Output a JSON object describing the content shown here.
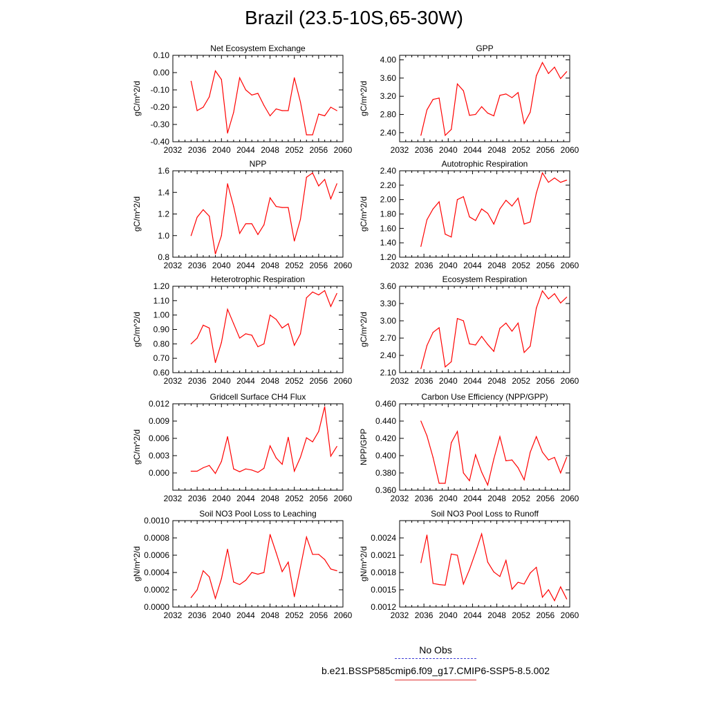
{
  "figure": {
    "title": "Brazil (23.5-10S,65-30W)"
  },
  "legend": {
    "items": [
      {
        "label": "No Obs",
        "color": "#3b3bd6",
        "style": "dashed"
      },
      {
        "label": "b.e21.BSSP585cmip6.f09_g17.CMIP6-SSP5-8.5.002",
        "color": "#e03030",
        "style": "solid"
      }
    ]
  },
  "colors": {
    "series": "#ff0000",
    "axis": "#000000"
  },
  "chart_data": [
    {
      "type": "line",
      "title": "Net Ecosystem Exchange",
      "ylabel": "gC/m^2/d",
      "xlim": [
        2032,
        2060
      ],
      "xticks": [
        "2032",
        "2036",
        "2040",
        "2044",
        "2048",
        "2052",
        "2056",
        "2060"
      ],
      "ylim": [
        -0.4,
        0.1
      ],
      "yticks": [
        "-0.40",
        "-0.30",
        "-0.20",
        "-0.10",
        "0.00",
        "0.10"
      ],
      "x": [
        2035,
        2036,
        2037,
        2038,
        2039,
        2040,
        2041,
        2042,
        2043,
        2044,
        2045,
        2046,
        2047,
        2048,
        2049,
        2050,
        2051,
        2052,
        2053,
        2054,
        2055,
        2056,
        2057,
        2058,
        2059
      ],
      "series": [
        {
          "values": [
            -0.05,
            -0.22,
            -0.2,
            -0.14,
            0.01,
            -0.04,
            -0.35,
            -0.23,
            -0.03,
            -0.1,
            -0.13,
            -0.12,
            -0.19,
            -0.25,
            -0.21,
            -0.22,
            -0.22,
            -0.03,
            -0.17,
            -0.36,
            -0.36,
            -0.24,
            -0.25,
            -0.2,
            -0.22
          ]
        }
      ]
    },
    {
      "type": "line",
      "title": "GPP",
      "ylabel": "gC/m^2/d",
      "xlim": [
        2032,
        2060
      ],
      "xticks": [
        "2032",
        "2036",
        "2040",
        "2044",
        "2048",
        "2052",
        "2056",
        "2060"
      ],
      "ylim": [
        2.2,
        4.1
      ],
      "yticks": [
        "2.40",
        "2.80",
        "3.20",
        "3.60",
        "4.00"
      ],
      "x": [
        2035.5,
        2036.5,
        2037.5,
        2038.5,
        2039.5,
        2040.5,
        2041.5,
        2042.5,
        2043.5,
        2044.5,
        2045.5,
        2046.5,
        2047.5,
        2048.5,
        2049.5,
        2050.5,
        2051.5,
        2052.5,
        2053.5,
        2054.5,
        2055.5,
        2056.5,
        2057.5,
        2058.5,
        2059.5
      ],
      "series": [
        {
          "values": [
            2.34,
            2.9,
            3.13,
            3.16,
            2.34,
            2.47,
            3.47,
            3.32,
            2.78,
            2.8,
            2.97,
            2.83,
            2.77,
            3.22,
            3.25,
            3.17,
            3.28,
            2.6,
            2.85,
            3.65,
            3.94,
            3.7,
            3.84,
            3.59,
            3.74
          ]
        }
      ]
    },
    {
      "type": "line",
      "title": "NPP",
      "ylabel": "gC/m^2/d",
      "xlim": [
        2032,
        2060
      ],
      "xticks": [
        "2032",
        "2036",
        "2040",
        "2044",
        "2048",
        "2052",
        "2056",
        "2060"
      ],
      "ylim": [
        0.8,
        1.6
      ],
      "yticks": [
        "0.8",
        "1.0",
        "1.2",
        "1.4",
        "1.6"
      ],
      "x": [
        2035,
        2036,
        2037,
        2038,
        2039,
        2040,
        2041,
        2042,
        2043,
        2044,
        2045,
        2046,
        2047,
        2048,
        2049,
        2050,
        2051,
        2052,
        2053,
        2054,
        2055,
        2056,
        2057,
        2058,
        2059
      ],
      "series": [
        {
          "values": [
            1.0,
            1.17,
            1.24,
            1.18,
            0.83,
            1.0,
            1.48,
            1.27,
            1.02,
            1.11,
            1.11,
            1.01,
            1.1,
            1.35,
            1.27,
            1.26,
            1.26,
            0.95,
            1.15,
            1.54,
            1.58,
            1.46,
            1.52,
            1.34,
            1.48
          ]
        }
      ]
    },
    {
      "type": "line",
      "title": "Autotrophic Respiration",
      "ylabel": "gC/m^2/d",
      "xlim": [
        2032,
        2060
      ],
      "xticks": [
        "2032",
        "2036",
        "2040",
        "2044",
        "2048",
        "2052",
        "2056",
        "2060"
      ],
      "ylim": [
        1.2,
        2.4
      ],
      "yticks": [
        "1.20",
        "1.40",
        "1.60",
        "1.80",
        "2.00",
        "2.20",
        "2.40"
      ],
      "x": [
        2035.5,
        2036.5,
        2037.5,
        2038.5,
        2039.5,
        2040.5,
        2041.5,
        2042.5,
        2043.5,
        2044.5,
        2045.5,
        2046.5,
        2047.5,
        2048.5,
        2049.5,
        2050.5,
        2051.5,
        2052.5,
        2053.5,
        2054.5,
        2055.5,
        2056.5,
        2057.5,
        2058.5,
        2059.5
      ],
      "series": [
        {
          "values": [
            1.35,
            1.72,
            1.87,
            1.97,
            1.52,
            1.48,
            2.0,
            2.04,
            1.76,
            1.71,
            1.87,
            1.81,
            1.66,
            1.87,
            1.99,
            1.91,
            2.02,
            1.66,
            1.69,
            2.09,
            2.37,
            2.24,
            2.3,
            2.24,
            2.27
          ]
        }
      ]
    },
    {
      "type": "line",
      "title": "Heterotrophic Respiration",
      "ylabel": "gC/m^2/d",
      "xlim": [
        2032,
        2060
      ],
      "xticks": [
        "2032",
        "2036",
        "2040",
        "2044",
        "2048",
        "2052",
        "2056",
        "2060"
      ],
      "ylim": [
        0.6,
        1.2
      ],
      "yticks": [
        "0.60",
        "0.70",
        "0.80",
        "0.90",
        "1.00",
        "1.10",
        "1.20"
      ],
      "x": [
        2035,
        2036,
        2037,
        2038,
        2039,
        2040,
        2041,
        2042,
        2043,
        2044,
        2045,
        2046,
        2047,
        2048,
        2049,
        2050,
        2051,
        2052,
        2053,
        2054,
        2055,
        2056,
        2057,
        2058,
        2059
      ],
      "series": [
        {
          "values": [
            0.8,
            0.84,
            0.93,
            0.91,
            0.67,
            0.81,
            1.04,
            0.94,
            0.84,
            0.87,
            0.86,
            0.78,
            0.8,
            1.0,
            0.97,
            0.91,
            0.94,
            0.79,
            0.87,
            1.12,
            1.16,
            1.14,
            1.17,
            1.06,
            1.15
          ]
        }
      ]
    },
    {
      "type": "line",
      "title": "Ecosystem Respiration",
      "ylabel": "gC/m^2/d",
      "xlim": [
        2032,
        2060
      ],
      "xticks": [
        "2032",
        "2036",
        "2040",
        "2044",
        "2048",
        "2052",
        "2056",
        "2060"
      ],
      "ylim": [
        2.1,
        3.6
      ],
      "yticks": [
        "2.10",
        "2.40",
        "2.70",
        "3.00",
        "3.30",
        "3.60"
      ],
      "x": [
        2035.5,
        2036.5,
        2037.5,
        2038.5,
        2039.5,
        2040.5,
        2041.5,
        2042.5,
        2043.5,
        2044.5,
        2045.5,
        2046.5,
        2047.5,
        2048.5,
        2049.5,
        2050.5,
        2051.5,
        2052.5,
        2053.5,
        2054.5,
        2055.5,
        2056.5,
        2057.5,
        2058.5,
        2059.5
      ],
      "series": [
        {
          "values": [
            2.17,
            2.57,
            2.8,
            2.88,
            2.2,
            2.29,
            3.04,
            3.0,
            2.6,
            2.58,
            2.73,
            2.59,
            2.47,
            2.87,
            2.96,
            2.82,
            2.96,
            2.45,
            2.56,
            3.22,
            3.52,
            3.38,
            3.47,
            3.31,
            3.41
          ]
        }
      ]
    },
    {
      "type": "line",
      "title": "Gridcell Surface CH4 Flux",
      "ylabel": "gC/m^2/d",
      "xlim": [
        2032,
        2060
      ],
      "xticks": [
        "2032",
        "2036",
        "2040",
        "2044",
        "2048",
        "2052",
        "2056",
        "2060"
      ],
      "ylim": [
        -0.003,
        0.012
      ],
      "yticks": [
        "0.000",
        "0.003",
        "0.006",
        "0.009",
        "0.012"
      ],
      "yticks_at": [
        0.0,
        0.003,
        0.006,
        0.009,
        0.012
      ],
      "x": [
        2035,
        2036,
        2037,
        2038,
        2039,
        2040,
        2041,
        2042,
        2043,
        2044,
        2045,
        2046,
        2047,
        2048,
        2049,
        2050,
        2051,
        2052,
        2053,
        2054,
        2055,
        2056,
        2057,
        2058,
        2059
      ],
      "series": [
        {
          "values": [
            0.0003,
            0.0003,
            0.0009,
            0.0013,
            -0.0001,
            0.002,
            0.0063,
            0.0007,
            0.0002,
            0.0007,
            0.0005,
            0.0001,
            0.0008,
            0.0047,
            0.0026,
            0.0015,
            0.0062,
            0.0003,
            0.0027,
            0.0061,
            0.0054,
            0.0072,
            0.0115,
            0.0029,
            0.0046
          ]
        }
      ]
    },
    {
      "type": "line",
      "title": "Carbon Use Efficiency (NPP/GPP)",
      "ylabel": "NPP/GPP",
      "xlim": [
        2032,
        2060
      ],
      "xticks": [
        "2032",
        "2036",
        "2040",
        "2044",
        "2048",
        "2052",
        "2056",
        "2060"
      ],
      "ylim": [
        0.36,
        0.46
      ],
      "yticks": [
        "0.360",
        "0.380",
        "0.400",
        "0.420",
        "0.440",
        "0.460"
      ],
      "x": [
        2035.5,
        2036.5,
        2037.5,
        2038.5,
        2039.5,
        2040.5,
        2041.5,
        2042.5,
        2043.5,
        2044.5,
        2045.5,
        2046.5,
        2047.5,
        2048.5,
        2049.5,
        2050.5,
        2051.5,
        2052.5,
        2053.5,
        2054.5,
        2055.5,
        2056.5,
        2057.5,
        2058.5,
        2059.5
      ],
      "series": [
        {
          "values": [
            0.44,
            0.423,
            0.398,
            0.368,
            0.368,
            0.415,
            0.428,
            0.38,
            0.371,
            0.401,
            0.381,
            0.366,
            0.396,
            0.422,
            0.394,
            0.395,
            0.386,
            0.372,
            0.404,
            0.422,
            0.404,
            0.395,
            0.398,
            0.38,
            0.398
          ]
        }
      ]
    },
    {
      "type": "line",
      "title": "Soil NO3 Pool Loss to Leaching",
      "ylabel": "gN/m^2/d",
      "xlim": [
        2032,
        2060
      ],
      "xticks": [
        "2032",
        "2036",
        "2040",
        "2044",
        "2048",
        "2052",
        "2056",
        "2060"
      ],
      "ylim": [
        0.0,
        0.001
      ],
      "yticks": [
        "0.0000",
        "0.0002",
        "0.0004",
        "0.0006",
        "0.0008",
        "0.0010"
      ],
      "x": [
        2035,
        2036,
        2037,
        2038,
        2039,
        2040,
        2041,
        2042,
        2043,
        2044,
        2045,
        2046,
        2047,
        2048,
        2049,
        2050,
        2051,
        2052,
        2053,
        2054,
        2055,
        2056,
        2057,
        2058,
        2059
      ],
      "series": [
        {
          "values": [
            0.00011,
            0.0002,
            0.00042,
            0.00035,
            0.0001,
            0.00033,
            0.00067,
            0.00029,
            0.00026,
            0.00031,
            0.0004,
            0.00038,
            0.0004,
            0.00084,
            0.00063,
            0.00041,
            0.00052,
            0.00012,
            0.00046,
            0.00081,
            0.00061,
            0.00061,
            0.00055,
            0.00044,
            0.00042
          ]
        }
      ]
    },
    {
      "type": "line",
      "title": "Soil NO3 Pool Loss to Runoff",
      "ylabel": "gN/m^2/d",
      "xlim": [
        2032,
        2060
      ],
      "xticks": [
        "2032",
        "2036",
        "2040",
        "2044",
        "2048",
        "2052",
        "2056",
        "2060"
      ],
      "ylim": [
        0.0012,
        0.0027
      ],
      "yticks": [
        "0.0012",
        "0.0015",
        "0.0018",
        "0.0021",
        "0.0024"
      ],
      "x": [
        2035.5,
        2036.5,
        2037.5,
        2038.5,
        2039.5,
        2040.5,
        2041.5,
        2042.5,
        2043.5,
        2044.5,
        2045.5,
        2046.5,
        2047.5,
        2048.5,
        2049.5,
        2050.5,
        2051.5,
        2052.5,
        2053.5,
        2054.5,
        2055.5,
        2056.5,
        2057.5,
        2058.5,
        2059.5
      ],
      "series": [
        {
          "values": [
            0.00197,
            0.00245,
            0.00161,
            0.00159,
            0.00158,
            0.00212,
            0.0021,
            0.0016,
            0.00185,
            0.00215,
            0.00247,
            0.00198,
            0.00181,
            0.00173,
            0.00201,
            0.00151,
            0.00163,
            0.0016,
            0.00179,
            0.00189,
            0.00137,
            0.0015,
            0.00131,
            0.00155,
            0.00134
          ]
        }
      ]
    }
  ]
}
